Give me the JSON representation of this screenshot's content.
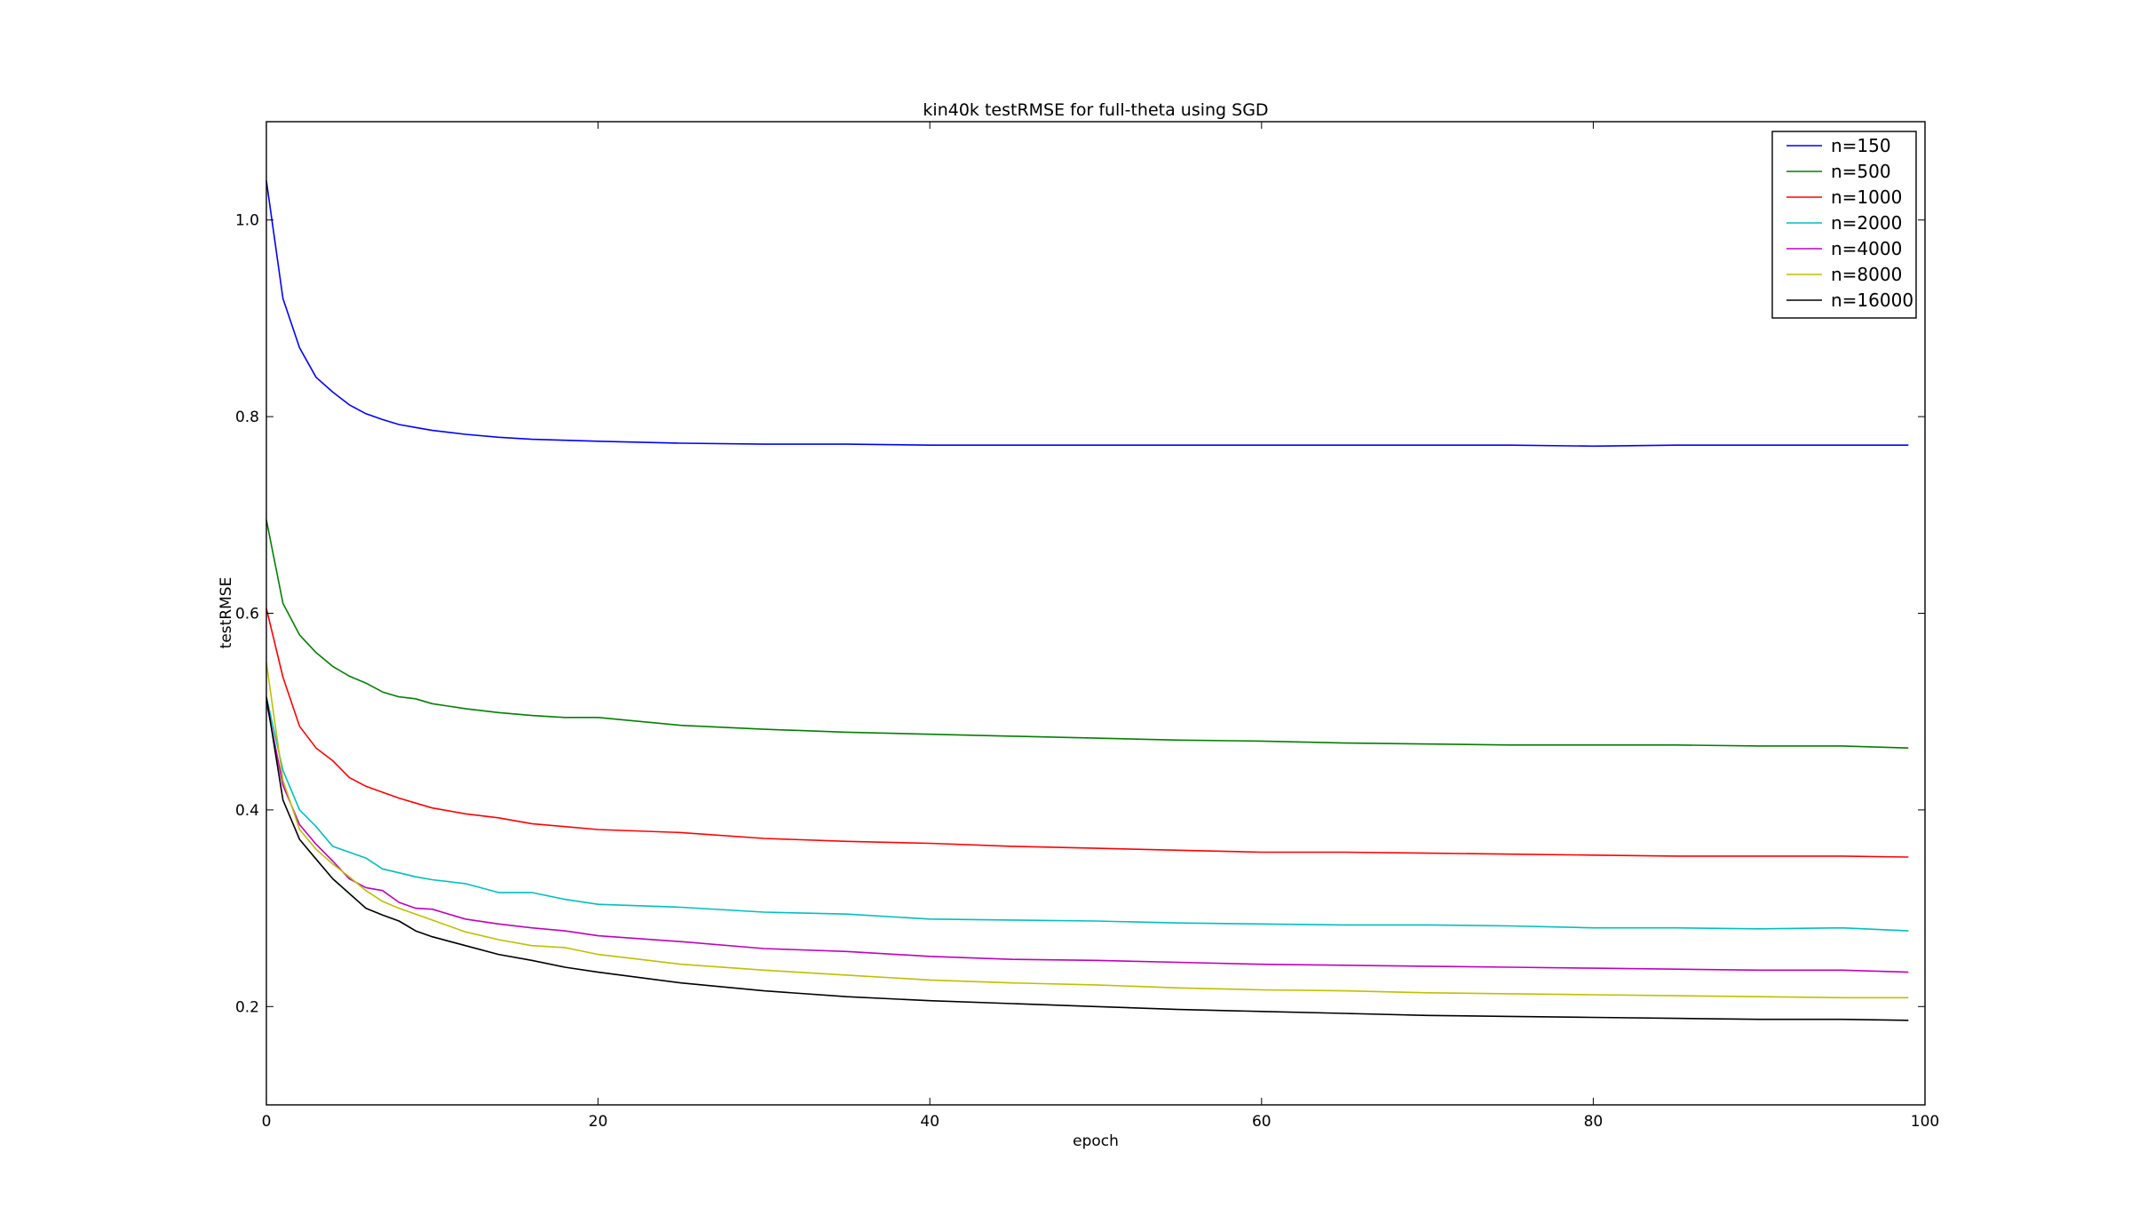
{
  "chart_data": {
    "type": "line",
    "title": "kin40k testRMSE for full-theta using SGD",
    "xlabel": "epoch",
    "ylabel": "testRMSE",
    "xlim": [
      0,
      100
    ],
    "ylim": [
      0.1,
      1.1
    ],
    "xticks": [
      0,
      20,
      40,
      60,
      80,
      100
    ],
    "yticks": [
      0.2,
      0.4,
      0.6,
      0.8,
      1.0
    ],
    "xtick_labels": [
      "0",
      "20",
      "40",
      "60",
      "80",
      "100"
    ],
    "ytick_labels": [
      "0.2",
      "0.4",
      "0.6",
      "0.8",
      "1.0"
    ],
    "grid": false,
    "legend_position": "top-right",
    "x": [
      0,
      1,
      2,
      3,
      4,
      5,
      6,
      7,
      8,
      9,
      10,
      12,
      14,
      16,
      18,
      20,
      25,
      30,
      35,
      40,
      45,
      50,
      55,
      60,
      65,
      70,
      75,
      80,
      85,
      90,
      95,
      99
    ],
    "series": [
      {
        "name": "n=150",
        "color": "#0000ff",
        "values": [
          1.04,
          0.92,
          0.87,
          0.84,
          0.825,
          0.812,
          0.803,
          0.797,
          0.792,
          0.789,
          0.786,
          0.782,
          0.779,
          0.777,
          0.776,
          0.775,
          0.773,
          0.772,
          0.772,
          0.771,
          0.771,
          0.771,
          0.771,
          0.771,
          0.771,
          0.771,
          0.771,
          0.77,
          0.771,
          0.771,
          0.771,
          0.771
        ]
      },
      {
        "name": "n=500",
        "color": "#008000",
        "values": [
          0.695,
          0.61,
          0.578,
          0.56,
          0.546,
          0.536,
          0.529,
          0.52,
          0.515,
          0.513,
          0.508,
          0.503,
          0.499,
          0.496,
          0.494,
          0.494,
          0.486,
          0.482,
          0.479,
          0.477,
          0.475,
          0.473,
          0.471,
          0.47,
          0.468,
          0.467,
          0.466,
          0.466,
          0.466,
          0.465,
          0.465,
          0.463
        ]
      },
      {
        "name": "n=1000",
        "color": "#ff0000",
        "values": [
          0.605,
          0.535,
          0.485,
          0.463,
          0.45,
          0.433,
          0.424,
          0.418,
          0.412,
          0.407,
          0.402,
          0.396,
          0.392,
          0.386,
          0.383,
          0.38,
          0.377,
          0.371,
          0.368,
          0.366,
          0.363,
          0.361,
          0.359,
          0.357,
          0.357,
          0.356,
          0.355,
          0.354,
          0.353,
          0.353,
          0.353,
          0.352
        ]
      },
      {
        "name": "n=2000",
        "color": "#00bfbf",
        "values": [
          0.515,
          0.44,
          0.4,
          0.383,
          0.363,
          0.357,
          0.351,
          0.34,
          0.336,
          0.332,
          0.329,
          0.325,
          0.316,
          0.316,
          0.309,
          0.304,
          0.301,
          0.296,
          0.294,
          0.289,
          0.288,
          0.287,
          0.285,
          0.284,
          0.283,
          0.283,
          0.282,
          0.28,
          0.28,
          0.279,
          0.28,
          0.277
        ]
      },
      {
        "name": "n=4000",
        "color": "#bf00bf",
        "values": [
          0.51,
          0.425,
          0.385,
          0.365,
          0.348,
          0.33,
          0.321,
          0.318,
          0.306,
          0.3,
          0.299,
          0.289,
          0.284,
          0.28,
          0.277,
          0.272,
          0.266,
          0.259,
          0.256,
          0.251,
          0.248,
          0.247,
          0.245,
          0.243,
          0.242,
          0.241,
          0.24,
          0.239,
          0.238,
          0.237,
          0.237,
          0.235
        ]
      },
      {
        "name": "n=8000",
        "color": "#bfbf00",
        "values": [
          0.55,
          0.43,
          0.38,
          0.36,
          0.345,
          0.332,
          0.318,
          0.307,
          0.3,
          0.294,
          0.288,
          0.276,
          0.268,
          0.262,
          0.26,
          0.253,
          0.243,
          0.237,
          0.232,
          0.227,
          0.224,
          0.222,
          0.219,
          0.217,
          0.216,
          0.214,
          0.213,
          0.212,
          0.211,
          0.21,
          0.209,
          0.209
        ]
      },
      {
        "name": "n=16000",
        "color": "#000000",
        "values": [
          0.515,
          0.41,
          0.37,
          0.35,
          0.33,
          0.315,
          0.3,
          0.293,
          0.287,
          0.277,
          0.271,
          0.262,
          0.253,
          0.247,
          0.24,
          0.235,
          0.224,
          0.216,
          0.21,
          0.206,
          0.203,
          0.2,
          0.197,
          0.195,
          0.193,
          0.191,
          0.19,
          0.189,
          0.188,
          0.187,
          0.187,
          0.186
        ]
      }
    ]
  }
}
